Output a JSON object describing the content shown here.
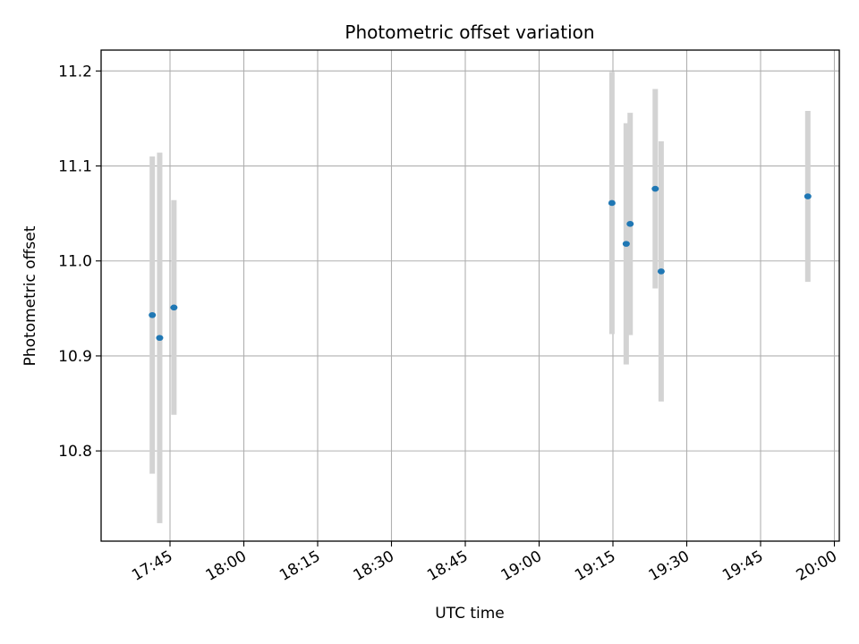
{
  "chart_data": {
    "type": "scatter",
    "title": "Photometric offset variation",
    "xlabel": "UTC time",
    "ylabel": "Photometric offset",
    "x_ticks": [
      "17:45",
      "18:00",
      "18:15",
      "18:30",
      "18:45",
      "19:00",
      "19:15",
      "19:30",
      "19:45",
      "20:00"
    ],
    "y_ticks": [
      "10.8",
      "10.9",
      "11.0",
      "11.1",
      "11.2"
    ],
    "xlim": [
      "17:31",
      "20:01"
    ],
    "ylim": [
      10.705,
      11.222
    ],
    "grid": true,
    "point_color": "#1f77b4",
    "errorbar_color": "#d3d3d3",
    "points": [
      {
        "x": "17:41:24",
        "y": 10.943,
        "err": 0.167
      },
      {
        "x": "17:42:54",
        "y": 10.919,
        "err": 0.195
      },
      {
        "x": "17:45:48",
        "y": 10.951,
        "err": 0.113
      },
      {
        "x": "19:14:48",
        "y": 11.061,
        "err": 0.138
      },
      {
        "x": "19:17:42",
        "y": 11.018,
        "err": 0.127
      },
      {
        "x": "19:18:30",
        "y": 11.039,
        "err": 0.117
      },
      {
        "x": "19:23:36",
        "y": 11.076,
        "err": 0.105
      },
      {
        "x": "19:24:48",
        "y": 10.989,
        "err": 0.137
      },
      {
        "x": "19:54:36",
        "y": 11.068,
        "err": 0.09
      }
    ]
  }
}
